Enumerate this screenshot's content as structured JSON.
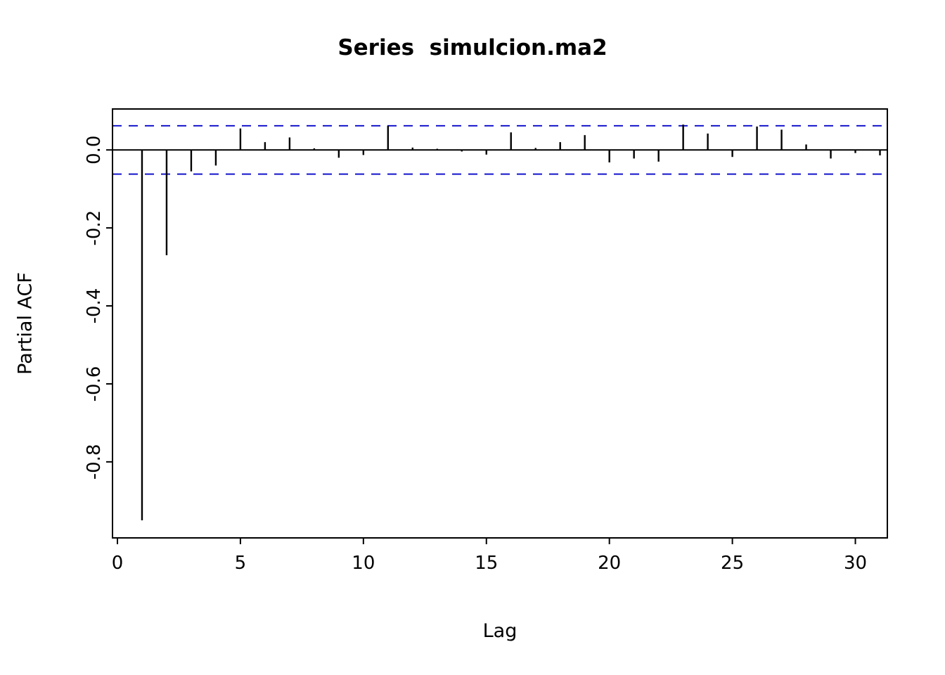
{
  "chart_data": {
    "type": "bar",
    "style": "vertical-sticks (R pacf plot)",
    "title": "Series  simulcion.ma2",
    "xlabel": "Lag",
    "ylabel": "Partial ACF",
    "x": [
      1,
      2,
      3,
      4,
      5,
      6,
      7,
      8,
      9,
      10,
      11,
      12,
      13,
      14,
      15,
      16,
      17,
      18,
      19,
      20,
      21,
      22,
      23,
      24,
      25,
      26,
      27,
      28,
      29,
      30,
      31
    ],
    "values": [
      -0.95,
      -0.27,
      -0.055,
      -0.04,
      0.055,
      0.02,
      0.032,
      0.004,
      -0.02,
      -0.013,
      0.062,
      0.006,
      0.003,
      -0.004,
      -0.012,
      0.045,
      0.005,
      0.02,
      0.038,
      -0.032,
      -0.022,
      -0.03,
      0.065,
      0.042,
      -0.018,
      0.06,
      0.052,
      0.014,
      -0.022,
      -0.008,
      -0.014
    ],
    "xlim": [
      -0.2,
      31.3
    ],
    "ylim": [
      -0.995,
      0.105
    ],
    "xticks": [
      0,
      5,
      10,
      15,
      20,
      25,
      30
    ],
    "xtick_labels": [
      "0",
      "5",
      "10",
      "15",
      "20",
      "25",
      "30"
    ],
    "yticks": [
      0.0,
      -0.2,
      -0.4,
      -0.6,
      -0.8
    ],
    "ytick_labels": [
      "0.0",
      "-0.2",
      "-0.4",
      "-0.6",
      "-0.8"
    ],
    "zero_line": 0,
    "confidence_bound": 0.062,
    "grid": false,
    "legend": null,
    "bar_color": "#000000",
    "axis_color": "#000000",
    "conf_line_color": "#1414CC",
    "conf_line_style": "dashed",
    "background": "#ffffff"
  }
}
